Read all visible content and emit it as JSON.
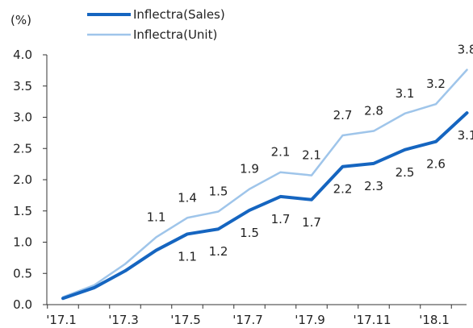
{
  "chart_data": {
    "type": "line",
    "ylabel": "(%)",
    "ylim": [
      0,
      4.0
    ],
    "yticks": [
      "0.0",
      "0.5",
      "1.0",
      "1.5",
      "2.0",
      "2.5",
      "3.0",
      "3.5",
      "4.0"
    ],
    "xtick_labels": [
      "'17.1",
      "'17.3",
      "'17.5",
      "'17.7",
      "'17.9",
      "'17.11",
      "'18.1"
    ],
    "x": [
      "'17.1",
      "'17.2",
      "'17.3",
      "'17.4",
      "'17.5",
      "'17.6",
      "'17.7",
      "'17.8",
      "'17.9",
      "'17.10",
      "'17.11",
      "'17.12",
      "'18.1",
      "'18.2"
    ],
    "grid": false,
    "legend_position": "top-left",
    "series": [
      {
        "name": "Inflectra(Sales)",
        "color": "#1565c0",
        "values": [
          0.1,
          0.27,
          0.54,
          0.87,
          1.13,
          1.21,
          1.51,
          1.73,
          1.68,
          2.21,
          2.26,
          2.48,
          2.61,
          3.07
        ],
        "data_labels": [
          "",
          "",
          "",
          "",
          "1.1",
          "1.2",
          "1.5",
          "1.7",
          "1.7",
          "2.2",
          "2.3",
          "2.5",
          "2.6",
          "3.1"
        ]
      },
      {
        "name": "Inflectra(Unit)",
        "color": "#9fc5ea",
        "values": [
          0.12,
          0.31,
          0.65,
          1.08,
          1.39,
          1.49,
          1.85,
          2.12,
          2.07,
          2.71,
          2.78,
          3.06,
          3.21,
          3.76
        ],
        "data_labels": [
          "",
          "",
          "",
          "1.1",
          "1.4",
          "1.5",
          "1.9",
          "2.1",
          "2.1",
          "2.7",
          "2.8",
          "3.1",
          "3.2",
          "3.8"
        ]
      }
    ]
  }
}
